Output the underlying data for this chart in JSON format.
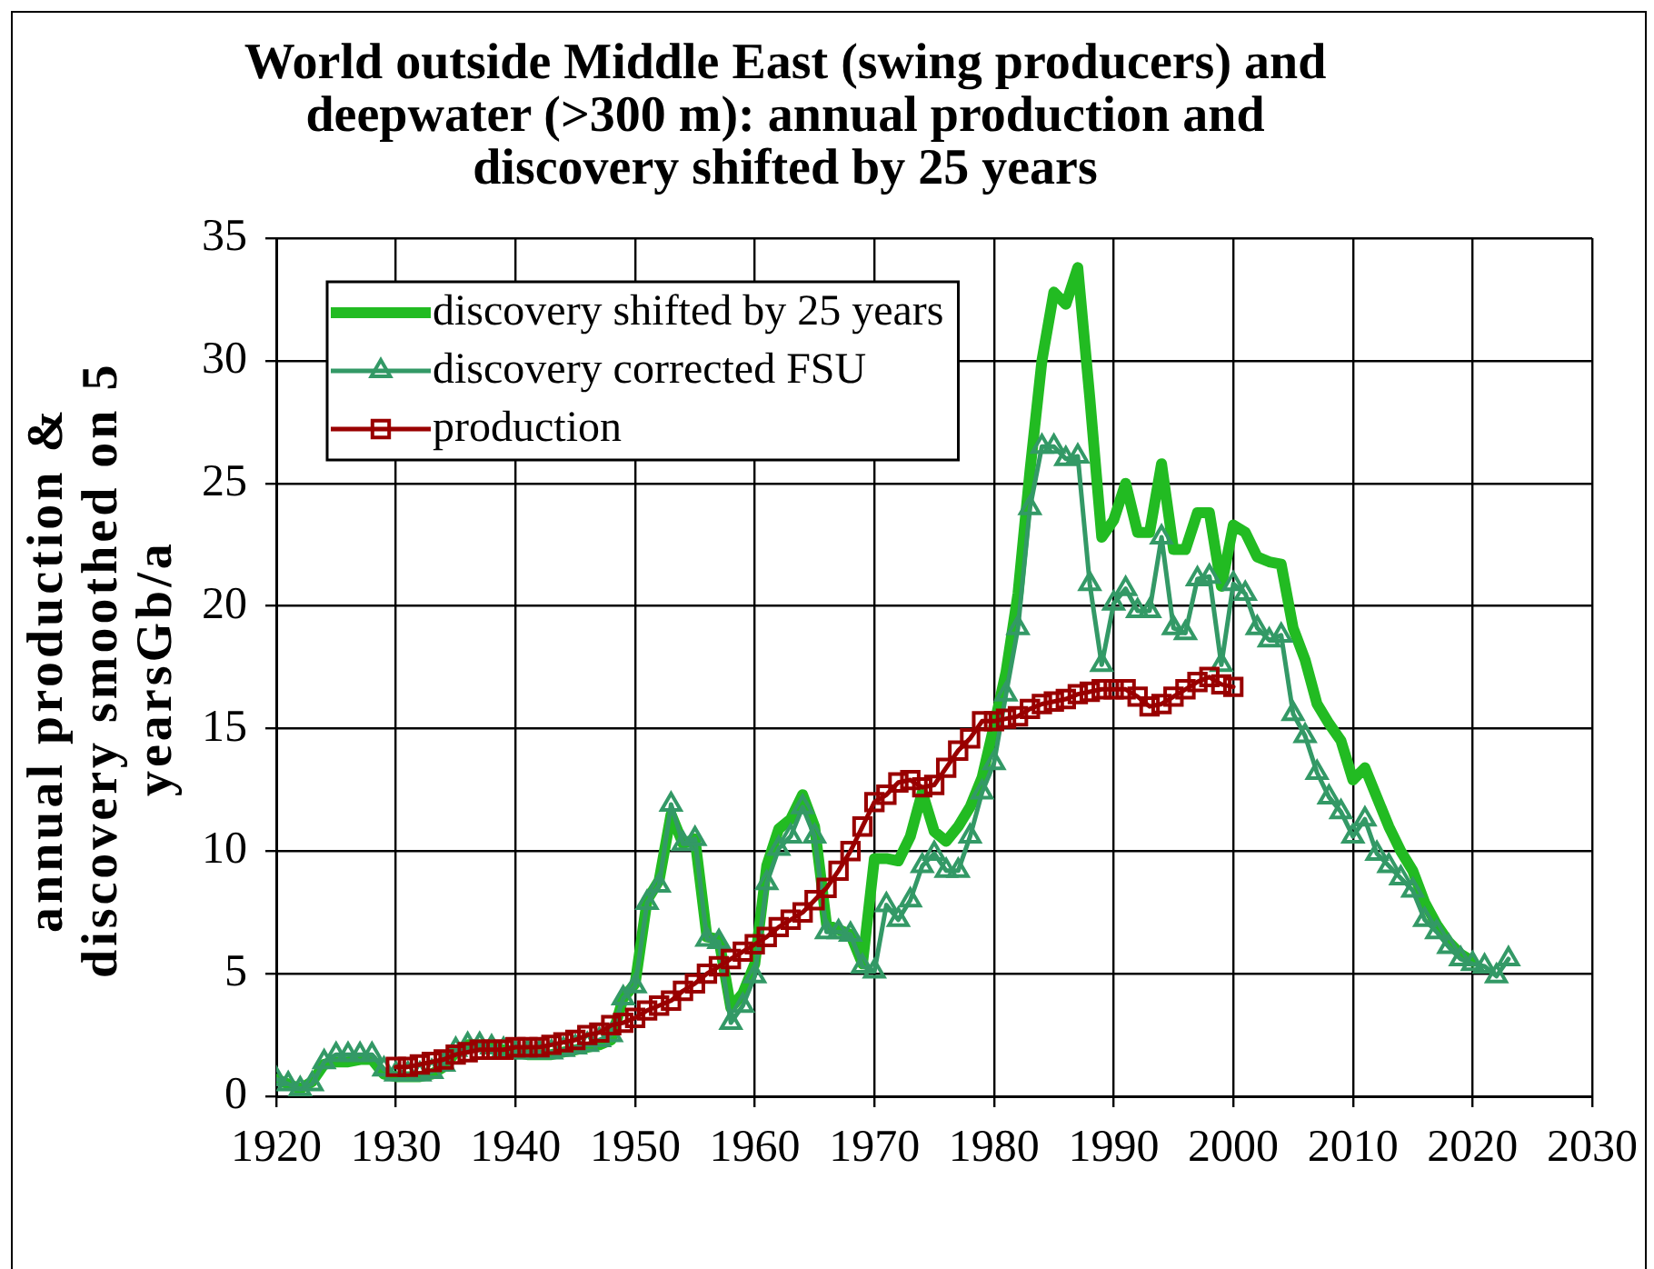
{
  "chart_data": {
    "type": "line",
    "title": "World outside Middle East (swing producers) and deepwater (>300 m): annual production and discovery shifted by 25 years",
    "ylabel": "annual production & discovery smoothed on 5 yearsGb/a",
    "xlim": [
      1920,
      2030
    ],
    "xticks": [
      1920,
      1930,
      1940,
      1950,
      1960,
      1970,
      1980,
      1990,
      2000,
      2010,
      2020,
      2030
    ],
    "ylim": [
      0,
      35
    ],
    "yticks": [
      0,
      5,
      10,
      15,
      20,
      25,
      30,
      35
    ],
    "grid": true,
    "legend": "top left",
    "series": [
      {
        "name": "discovery shifted by 25 years",
        "color": "#22bb22",
        "marker": "none",
        "x": [
          1920,
          1921,
          1922,
          1923,
          1924,
          1925,
          1926,
          1927,
          1928,
          1929,
          1930,
          1931,
          1932,
          1933,
          1934,
          1935,
          1936,
          1937,
          1938,
          1939,
          1940,
          1941,
          1942,
          1943,
          1944,
          1945,
          1946,
          1947,
          1948,
          1949,
          1950,
          1951,
          1952,
          1953,
          1954,
          1955,
          1956,
          1957,
          1958,
          1959,
          1960,
          1961,
          1962,
          1963,
          1964,
          1965,
          1966,
          1967,
          1968,
          1969,
          1970,
          1971,
          1972,
          1973,
          1974,
          1975,
          1976,
          1977,
          1978,
          1979,
          1980,
          1981,
          1982,
          1983,
          1984,
          1985,
          1986,
          1987,
          1988,
          1989,
          1990,
          1991,
          1992,
          1993,
          1994,
          1995,
          1996,
          1997,
          1998,
          1999,
          2000,
          2001,
          2002,
          2003,
          2004,
          2005,
          2006,
          2007,
          2008,
          2009,
          2010,
          2011,
          2012,
          2013,
          2014,
          2015,
          2016,
          2017,
          2018,
          2019,
          2020
        ],
        "values": [
          0.7,
          0.5,
          0.3,
          0.6,
          1.3,
          1.4,
          1.4,
          1.5,
          1.5,
          0.9,
          0.8,
          0.8,
          0.8,
          0.9,
          1.2,
          1.8,
          2.1,
          2.1,
          2.0,
          1.9,
          1.8,
          1.7,
          1.7,
          1.7,
          1.8,
          1.9,
          2.0,
          2.1,
          2.3,
          4.0,
          4.6,
          8.0,
          8.8,
          11.5,
          10.3,
          10.5,
          6.5,
          6.4,
          3.6,
          4.2,
          5.4,
          9.4,
          10.9,
          11.3,
          12.3,
          11.0,
          7.0,
          6.8,
          6.6,
          5.4,
          9.7,
          9.7,
          9.6,
          10.6,
          12.4,
          10.8,
          10.4,
          11.0,
          11.8,
          13.0,
          15.1,
          17.3,
          20.5,
          25.5,
          30.0,
          32.8,
          32.3,
          33.8,
          28.5,
          22.8,
          23.5,
          25.0,
          23.0,
          23.0,
          25.8,
          22.3,
          22.3,
          23.8,
          23.8,
          20.8,
          23.3,
          23.0,
          22.0,
          21.8,
          21.7,
          19.1,
          17.8,
          16.0,
          15.2,
          14.5,
          12.9,
          13.4,
          12.2,
          11.0,
          10.0,
          9.2,
          7.9,
          7.0,
          6.3,
          5.8,
          5.5
        ]
      },
      {
        "name": "discovery corrected FSU",
        "color": "#339966",
        "marker": "triangle",
        "x": [
          1920,
          1921,
          1922,
          1923,
          1924,
          1925,
          1926,
          1927,
          1928,
          1929,
          1930,
          1931,
          1932,
          1933,
          1934,
          1935,
          1936,
          1937,
          1938,
          1939,
          1940,
          1941,
          1942,
          1943,
          1944,
          1945,
          1946,
          1947,
          1948,
          1949,
          1950,
          1951,
          1952,
          1953,
          1954,
          1955,
          1956,
          1957,
          1958,
          1959,
          1960,
          1961,
          1962,
          1963,
          1964,
          1965,
          1966,
          1967,
          1968,
          1969,
          1970,
          1971,
          1972,
          1973,
          1974,
          1975,
          1976,
          1977,
          1978,
          1979,
          1980,
          1981,
          1982,
          1983,
          1984,
          1985,
          1986,
          1987,
          1988,
          1989,
          1990,
          1991,
          1992,
          1993,
          1994,
          1995,
          1996,
          1997,
          1998,
          1999,
          2000,
          2001,
          2002,
          2003,
          2004,
          2005,
          2006,
          2007,
          2008,
          2009,
          2010,
          2011,
          2012,
          2013,
          2014,
          2015,
          2016,
          2017,
          2018,
          2019,
          2020,
          2021,
          2022,
          2023
        ],
        "values": [
          0.7,
          0.5,
          0.3,
          0.5,
          1.4,
          1.7,
          1.7,
          1.7,
          1.7,
          1.1,
          0.9,
          0.9,
          0.9,
          1.0,
          1.3,
          1.9,
          2.1,
          2.1,
          2.0,
          1.9,
          1.8,
          1.8,
          1.8,
          1.8,
          1.9,
          2.0,
          2.1,
          2.3,
          2.5,
          4.0,
          4.5,
          7.9,
          8.6,
          11.9,
          10.3,
          10.5,
          6.4,
          6.3,
          3.0,
          3.7,
          4.9,
          8.7,
          10.1,
          10.6,
          11.8,
          10.6,
          6.7,
          6.7,
          6.6,
          5.3,
          5.1,
          7.8,
          7.2,
          8.0,
          9.4,
          9.9,
          9.2,
          9.2,
          10.6,
          12.4,
          13.6,
          16.4,
          19.1,
          24.0,
          26.5,
          26.5,
          26.0,
          26.1,
          20.9,
          17.6,
          20.1,
          20.7,
          19.8,
          19.8,
          22.8,
          19.1,
          18.9,
          21.1,
          21.2,
          17.6,
          20.9,
          20.5,
          19.1,
          18.6,
          18.8,
          15.6,
          14.7,
          13.2,
          12.2,
          11.6,
          10.6,
          11.3,
          9.9,
          9.4,
          8.9,
          8.4,
          7.2,
          6.7,
          6.1,
          5.6,
          5.4,
          5.3,
          4.9,
          5.6
        ]
      },
      {
        "name": "production",
        "color": "#990000",
        "marker": "square",
        "x": [
          1930,
          1931,
          1932,
          1933,
          1934,
          1935,
          1936,
          1937,
          1938,
          1939,
          1940,
          1941,
          1942,
          1943,
          1944,
          1945,
          1946,
          1947,
          1948,
          1949,
          1950,
          1951,
          1952,
          1953,
          1954,
          1955,
          1956,
          1957,
          1958,
          1959,
          1960,
          1961,
          1962,
          1963,
          1964,
          1965,
          1966,
          1967,
          1968,
          1969,
          1970,
          1971,
          1972,
          1973,
          1974,
          1975,
          1976,
          1977,
          1978,
          1979,
          1980,
          1981,
          1982,
          1983,
          1984,
          1985,
          1986,
          1987,
          1988,
          1989,
          1990,
          1991,
          1992,
          1993,
          1994,
          1995,
          1996,
          1997,
          1998,
          1999,
          2000
        ],
        "values": [
          1.2,
          1.2,
          1.3,
          1.4,
          1.5,
          1.7,
          1.8,
          1.9,
          1.9,
          1.9,
          2.0,
          2.0,
          2.0,
          2.1,
          2.2,
          2.3,
          2.5,
          2.6,
          2.9,
          3.0,
          3.2,
          3.5,
          3.7,
          3.9,
          4.3,
          4.6,
          5.0,
          5.3,
          5.6,
          5.9,
          6.2,
          6.5,
          6.9,
          7.2,
          7.5,
          8.0,
          8.5,
          9.2,
          10.0,
          11.0,
          12.0,
          12.3,
          12.8,
          12.9,
          12.6,
          12.7,
          13.4,
          14.1,
          14.6,
          15.3,
          15.3,
          15.4,
          15.5,
          15.8,
          16.0,
          16.1,
          16.2,
          16.4,
          16.5,
          16.6,
          16.6,
          16.6,
          16.3,
          15.9,
          16.0,
          16.3,
          16.6,
          16.9,
          17.1,
          16.8,
          16.7
        ]
      }
    ]
  }
}
